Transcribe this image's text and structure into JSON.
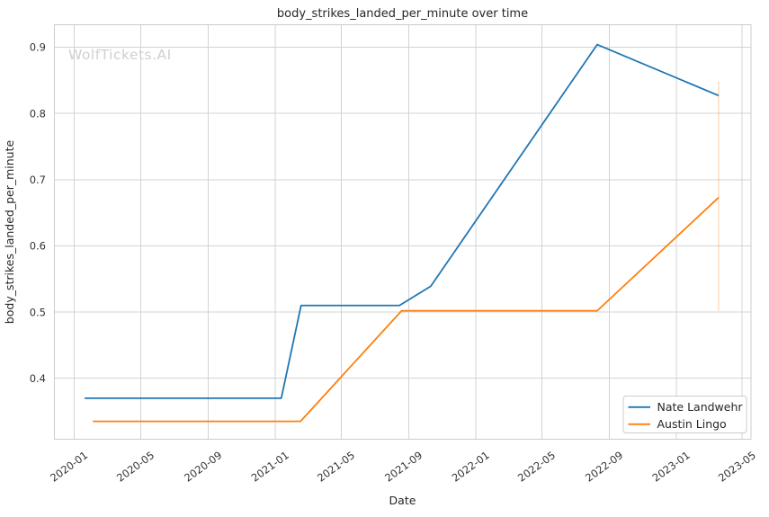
{
  "watermark": "WolfTickets.AI",
  "chart_data": {
    "type": "line",
    "title": "body_strikes_landed_per_minute over time",
    "xlabel": "Date",
    "ylabel": "body_strikes_landed_per_minute",
    "x_tick_labels": [
      "2020-01",
      "2020-05",
      "2020-09",
      "2021-01",
      "2021-05",
      "2021-09",
      "2022-01",
      "2022-05",
      "2022-09",
      "2023-01",
      "2023-05"
    ],
    "y_ticks": [
      0.4,
      0.5,
      0.6,
      0.7,
      0.8,
      0.9
    ],
    "xlim": [
      "2019-11-26",
      "2023-05-17"
    ],
    "ylim": [
      0.308,
      0.934
    ],
    "grid": true,
    "legend_position": "lower right",
    "series": [
      {
        "name": "Nate Landwehr",
        "color": "#1f77b4",
        "points": [
          {
            "date": "2020-01-20",
            "value": 0.37
          },
          {
            "date": "2021-01-12",
            "value": 0.37
          },
          {
            "date": "2021-02-17",
            "value": 0.51
          },
          {
            "date": "2021-08-15",
            "value": 0.51
          },
          {
            "date": "2021-10-11",
            "value": 0.539
          },
          {
            "date": "2022-08-10",
            "value": 0.904
          },
          {
            "date": "2023-03-19",
            "value": 0.827
          }
        ]
      },
      {
        "name": "Austin Lingo",
        "color": "#ff7f0e",
        "points": [
          {
            "date": "2020-02-04",
            "value": 0.335
          },
          {
            "date": "2021-02-16",
            "value": 0.335
          },
          {
            "date": "2021-08-19",
            "value": 0.502
          },
          {
            "date": "2022-08-10",
            "value": 0.502
          },
          {
            "date": "2023-03-19",
            "value": 0.673
          }
        ]
      }
    ],
    "annotations": [
      {
        "type": "vertical-segment",
        "date": "2023-03-19",
        "value_from": 0.502,
        "value_to": 0.849,
        "color": "#ff7f0e",
        "opacity": 0.3
      }
    ]
  }
}
